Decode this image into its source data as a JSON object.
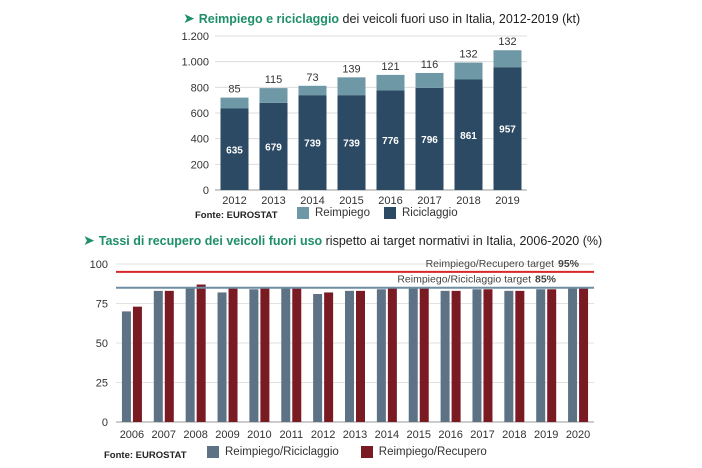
{
  "chart1": {
    "title_highlight": "Reimpiego e riciclaggio",
    "title_rest": " dei veicoli fuori uso in Italia, 2012-2019 (kt)",
    "source": "Fonte: EUROSTAT",
    "colors": {
      "riciclaggio": "#2c4a63",
      "reimpiego": "#6f98a6"
    }
  },
  "chart2": {
    "title_highlight": "Tassi di recupero dei veicoli fuori uso",
    "title_rest": " rispetto ai target normativi in Italia, 2006-2020 (%)",
    "source": "Fonte: EUROSTAT",
    "target_recupero_label": "Reimpiego/Recupero target",
    "target_recupero_value": "95%",
    "target_riciclaggio_label": "Reimpiego/Riciclaggio target",
    "target_riciclaggio_value": "85%",
    "colors": {
      "riciclaggio": "#5d7284",
      "recupero": "#7a1b24",
      "target_recupero": "#d9262a",
      "target_riciclaggio": "#6f8ea3"
    }
  },
  "chart_data": [
    {
      "type": "bar",
      "stacked": true,
      "title": "Reimpiego e riciclaggio dei veicoli fuori uso in Italia, 2012-2019 (kt)",
      "categories": [
        "2012",
        "2013",
        "2014",
        "2015",
        "2016",
        "2017",
        "2018",
        "2019"
      ],
      "series": [
        {
          "name": "Riciclaggio",
          "values": [
            635,
            679,
            739,
            739,
            776,
            796,
            861,
            957
          ]
        },
        {
          "name": "Reimpiego",
          "values": [
            85,
            115,
            73,
            139,
            121,
            116,
            132,
            132
          ]
        }
      ],
      "ylim": [
        0,
        1200
      ],
      "yticks": [
        0,
        200,
        400,
        600,
        800,
        1000,
        1200
      ],
      "ytick_labels": [
        "0",
        "200",
        "400",
        "600",
        "800",
        "1.000",
        "1.200"
      ],
      "legend": "bottom"
    },
    {
      "type": "bar",
      "title": "Tassi di recupero dei veicoli fuori uso rispetto ai target normativi in Italia, 2006-2020 (%)",
      "categories": [
        "2006",
        "2007",
        "2008",
        "2009",
        "2010",
        "2011",
        "2012",
        "2013",
        "2014",
        "2015",
        "2016",
        "2017",
        "2018",
        "2019",
        "2020"
      ],
      "series": [
        {
          "name": "Reimpiego/Riciclaggio",
          "values": [
            70,
            83,
            85,
            82,
            84,
            85,
            81,
            83,
            84,
            85,
            83,
            84,
            83,
            84,
            85
          ]
        },
        {
          "name": "Reimpiego/Recupero",
          "values": [
            73,
            83,
            87,
            85,
            85,
            85,
            82,
            83,
            85,
            85,
            83,
            84,
            83,
            84,
            85
          ]
        }
      ],
      "target_lines": [
        {
          "name": "Reimpiego/Recupero target",
          "value": 95
        },
        {
          "name": "Reimpiego/Riciclaggio target",
          "value": 85
        }
      ],
      "ylim": [
        0,
        100
      ],
      "yticks": [
        0,
        25,
        50,
        75,
        100
      ],
      "legend": "bottom"
    }
  ]
}
